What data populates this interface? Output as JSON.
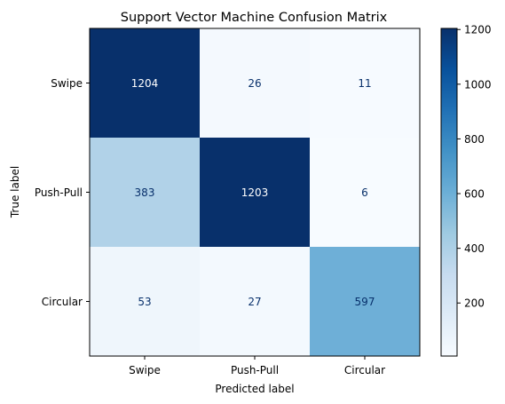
{
  "chart_data": {
    "type": "heatmap",
    "title": "Support Vector Machine Confusion Matrix",
    "xlabel": "Predicted label",
    "ylabel": "True label",
    "x_categories": [
      "Swipe",
      "Push-Pull",
      "Circular"
    ],
    "y_categories": [
      "Swipe",
      "Push-Pull",
      "Circular"
    ],
    "values": [
      [
        1204,
        26,
        11
      ],
      [
        383,
        1203,
        6
      ],
      [
        53,
        27,
        597
      ]
    ],
    "colormap": "Blues",
    "colorbar": {
      "ticks": [
        200,
        400,
        600,
        800,
        1000,
        1200
      ],
      "range": [
        6,
        1204
      ]
    },
    "grid": false
  }
}
